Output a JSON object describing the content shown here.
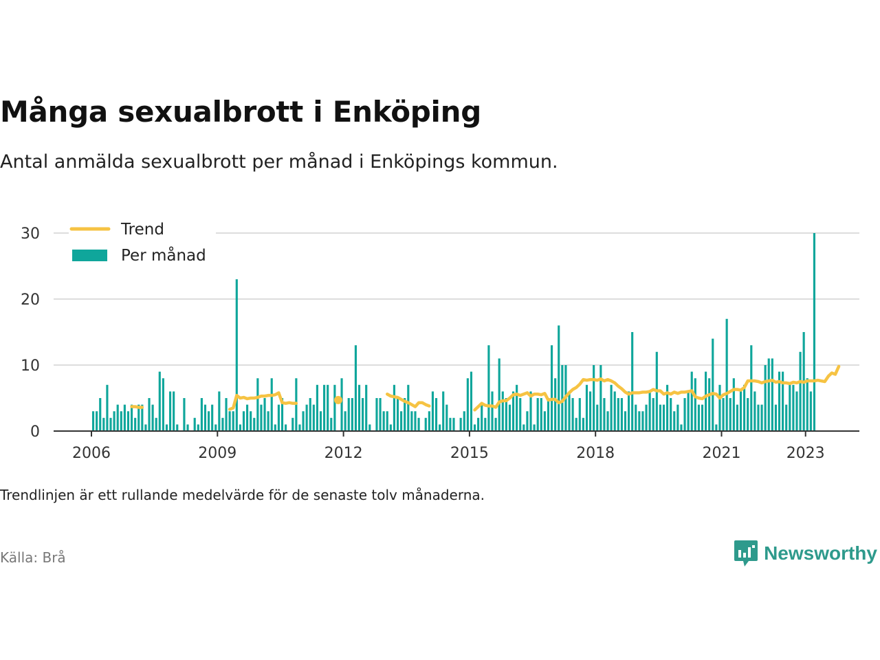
{
  "title": "Många sexualbrott i Enköping",
  "subtitle": "Antal anmälda sexualbrott per månad i Enköpings kommun.",
  "note": "Trendlinjen är ett rullande medelvärde för de senaste tolv månaderna.",
  "source": "Källa: Brå",
  "brand": {
    "name": "Newsworthy",
    "icon": "newsworthy-logo-icon",
    "color": "#2e9a8c"
  },
  "colors": {
    "bars": "#0fa69b",
    "trend": "#f6c343",
    "grid": "#dddddd",
    "axis": "#333333"
  },
  "legend": [
    {
      "key": "trend",
      "label": "Trend"
    },
    {
      "key": "bars",
      "label": "Per månad"
    }
  ],
  "chart_data": {
    "type": "bar",
    "title": "Många sexualbrott i Enköping",
    "xlabel": "",
    "ylabel": "",
    "x_start": "2006-01",
    "ylim": [
      0,
      30
    ],
    "y_ticks": [
      0,
      10,
      20,
      30
    ],
    "x_ticks": [
      "2006",
      "2009",
      "2012",
      "2015",
      "2018",
      "2021",
      "2023"
    ],
    "grid": true,
    "legend_position": "top-left",
    "series": [
      {
        "name": "Per månad",
        "kind": "bar",
        "values": [
          3,
          3,
          5,
          2,
          7,
          2,
          3,
          4,
          3,
          4,
          3,
          4,
          2,
          4,
          4,
          1,
          5,
          4,
          2,
          9,
          8,
          1,
          6,
          6,
          1,
          0,
          5,
          1,
          0,
          2,
          1,
          5,
          4,
          3,
          4,
          1,
          6,
          2,
          5,
          3,
          3,
          23,
          1,
          3,
          4,
          3,
          2,
          8,
          4,
          5,
          3,
          8,
          1,
          4,
          5,
          1,
          0,
          2,
          8,
          1,
          3,
          4,
          5,
          4,
          7,
          3,
          7,
          7,
          2,
          7,
          0,
          8,
          3,
          5,
          5,
          13,
          7,
          5,
          7,
          1,
          0,
          5,
          5,
          3,
          3,
          1,
          7,
          5,
          3,
          5,
          7,
          3,
          3,
          2,
          0,
          2,
          3,
          6,
          5,
          1,
          6,
          4,
          2,
          2,
          0,
          2,
          3,
          8,
          9,
          1,
          2,
          4,
          2,
          13,
          6,
          2,
          11,
          6,
          5,
          4,
          6,
          7,
          5,
          1,
          3,
          6,
          1,
          5,
          5,
          3,
          5,
          13,
          8,
          16,
          10,
          10,
          6,
          5,
          2,
          5,
          2,
          7,
          6,
          10,
          4,
          10,
          5,
          3,
          7,
          6,
          5,
          5,
          3,
          6,
          15,
          4,
          3,
          3,
          4,
          6,
          5,
          12,
          4,
          4,
          7,
          5,
          3,
          4,
          1,
          5,
          6,
          9,
          8,
          4,
          4,
          9,
          8,
          14,
          1,
          7,
          5,
          17,
          5,
          8,
          4,
          6,
          7,
          5,
          13,
          6,
          4,
          4,
          10,
          11,
          11,
          4,
          9,
          9,
          4,
          7,
          7,
          6,
          12,
          15,
          8,
          6,
          30
        ]
      },
      {
        "name": "Trend",
        "kind": "line",
        "values": [
          null,
          null,
          null,
          null,
          null,
          null,
          null,
          null,
          null,
          null,
          null,
          3.7,
          3.7,
          3.6,
          3.6,
          null,
          null,
          null,
          null,
          null,
          null,
          null,
          null,
          null,
          null,
          null,
          null,
          null,
          null,
          null,
          null,
          null,
          null,
          null,
          null,
          null,
          null,
          null,
          null,
          3.3,
          3.5,
          5.4,
          5.0,
          5.1,
          4.9,
          5.0,
          5.0,
          5.1,
          5.3,
          5.3,
          5.4,
          5.4,
          5.5,
          5.8,
          4.3,
          4.2,
          4.3,
          4.2,
          4.2,
          null,
          null,
          null,
          null,
          null,
          null,
          null,
          null,
          null,
          null,
          null,
          4.7,
          null,
          null,
          null,
          null,
          null,
          null,
          null,
          null,
          null,
          null,
          null,
          null,
          null,
          5.6,
          5.3,
          5.2,
          5.1,
          4.8,
          4.5,
          4.3,
          4.0,
          3.7,
          4.3,
          4.3,
          4.0,
          3.8,
          null,
          null,
          null,
          null,
          null,
          null,
          null,
          null,
          null,
          null,
          null,
          null,
          3.2,
          3.7,
          4.2,
          3.9,
          3.8,
          3.8,
          3.6,
          4.4,
          4.6,
          4.6,
          5.0,
          5.5,
          5.6,
          5.4,
          5.6,
          5.8,
          5.3,
          5.6,
          5.6,
          5.5,
          5.7,
          4.7,
          4.8,
          4.8,
          4.3,
          4.5,
          5.2,
          5.8,
          6.3,
          6.6,
          7.1,
          7.8,
          7.7,
          7.8,
          7.8,
          7.7,
          7.9,
          7.6,
          7.8,
          7.6,
          7.3,
          6.8,
          6.4,
          5.9,
          5.6,
          5.8,
          5.8,
          5.8,
          5.9,
          5.9,
          6.0,
          6.3,
          6.1,
          6.1,
          5.6,
          5.8,
          5.6,
          5.9,
          5.7,
          5.9,
          5.9,
          6.0,
          6.1,
          5.2,
          5.0,
          4.9,
          5.3,
          5.5,
          5.7,
          5.6,
          5.0,
          5.5,
          5.7,
          6.0,
          6.3,
          6.3,
          6.2,
          6.6,
          7.6,
          7.6,
          7.6,
          7.5,
          7.3,
          7.5,
          7.6,
          7.7,
          7.4,
          7.5,
          7.3,
          7.3,
          7.2,
          7.4,
          7.3,
          7.5,
          7.4,
          7.6,
          7.6,
          7.6,
          7.7,
          7.6,
          7.5,
          8.3,
          8.8,
          8.6,
          9.8
        ]
      }
    ]
  }
}
